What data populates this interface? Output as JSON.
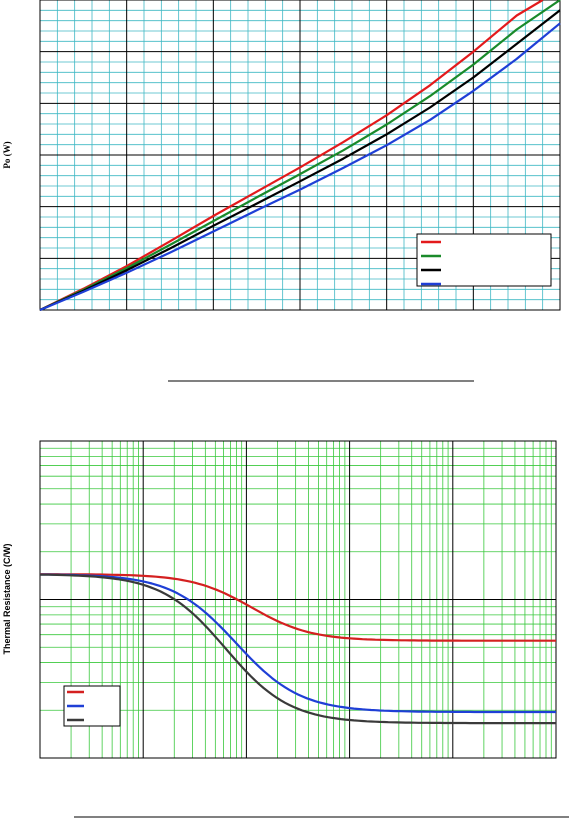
{
  "chart_data": [
    {
      "type": "line",
      "ylabel": "Po (W)",
      "xlim": [
        0,
        6
      ],
      "ylim": [
        0,
        6
      ],
      "grid": true,
      "legend_placement": "bottom-right",
      "series": [
        {
          "color": "#e31a1c",
          "x": [
            0,
            0.5,
            1,
            1.5,
            2,
            2.5,
            3,
            3.5,
            4,
            4.5,
            5,
            5.5,
            5.8
          ],
          "y": [
            0,
            0.41,
            0.85,
            1.33,
            1.82,
            2.29,
            2.76,
            3.25,
            3.77,
            4.35,
            5.0,
            5.7,
            6.0
          ]
        },
        {
          "color": "#1a8a2a",
          "x": [
            0,
            0.5,
            1,
            1.5,
            2,
            2.5,
            3,
            3.5,
            4,
            4.5,
            5,
            5.5,
            6.0
          ],
          "y": [
            0,
            0.39,
            0.81,
            1.26,
            1.72,
            2.18,
            2.63,
            3.09,
            3.59,
            4.14,
            4.75,
            5.43,
            6.0
          ]
        },
        {
          "color": "#000000",
          "x": [
            0,
            0.5,
            1,
            1.5,
            2,
            2.5,
            3,
            3.5,
            4,
            4.5,
            5,
            5.5,
            6.0
          ],
          "y": [
            0,
            0.37,
            0.77,
            1.19,
            1.63,
            2.06,
            2.49,
            2.93,
            3.4,
            3.92,
            4.5,
            5.15,
            5.8
          ]
        },
        {
          "color": "#1f3fd6",
          "x": [
            0,
            0.5,
            1,
            1.5,
            2,
            2.5,
            3,
            3.5,
            4,
            4.5,
            5,
            5.5,
            6.0
          ],
          "y": [
            0,
            0.35,
            0.72,
            1.11,
            1.52,
            1.93,
            2.33,
            2.75,
            3.19,
            3.68,
            4.24,
            4.86,
            5.55
          ]
        }
      ]
    },
    {
      "type": "line",
      "ylabel": "Thermal Resistance (C/W)",
      "xscale": "log",
      "yscale": "log",
      "xlim_decades": 5,
      "ylim_decades": 2,
      "grid": true,
      "legend_placement": "bottom-left",
      "series": [
        {
          "color": "#d42020",
          "low": -0.26,
          "high": 0.16,
          "center": 2.05,
          "width": 0.72
        },
        {
          "color": "#1f3fd6",
          "low": -0.71,
          "high": 0.16,
          "center": 1.9,
          "width": 0.78
        },
        {
          "color": "#3a3a3a",
          "low": -0.78,
          "high": 0.16,
          "center": 1.8,
          "width": 0.78
        }
      ]
    }
  ]
}
